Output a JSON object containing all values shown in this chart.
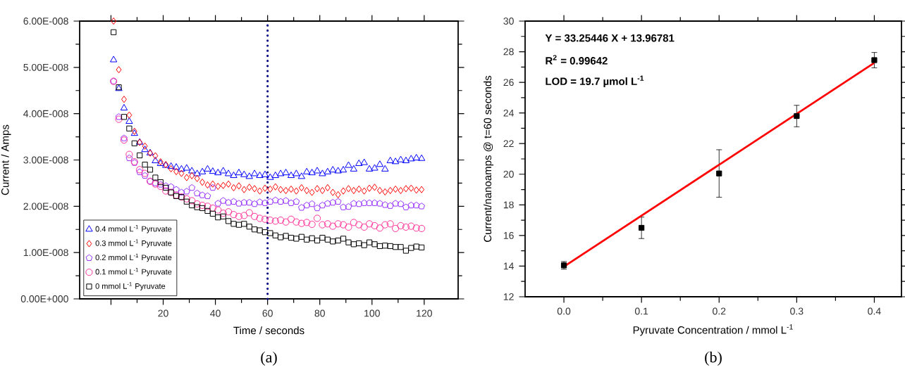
{
  "chart_data": [
    {
      "type": "scatter",
      "xlabel": "Time / seconds",
      "ylabel": "Current / Amps",
      "xlim": [
        -12,
        133
      ],
      "ylim": [
        0,
        6e-08
      ],
      "xticks": [
        {
          "value": 0,
          "label": null
        },
        20,
        40,
        60,
        80,
        100,
        120
      ],
      "yticks": [
        {
          "value": 0,
          "label": "0.00E+000"
        },
        {
          "value": 1e-08,
          "label": "1.00E-008"
        },
        {
          "value": 2e-08,
          "label": "2.00E-008"
        },
        {
          "value": 3e-08,
          "label": "3.00E-008"
        },
        {
          "value": 4e-08,
          "label": "4.00E-008"
        },
        {
          "value": 5e-08,
          "label": "5.00E-008"
        },
        {
          "value": 6e-08,
          "label": "6.00E-008"
        }
      ],
      "legend": "bottom left",
      "ref_lines": [
        {
          "axis": "x",
          "value": 60,
          "color": "#000080",
          "line_style": "dotted"
        }
      ],
      "annotations": [
        "(a)"
      ],
      "x": [
        1,
        3,
        5,
        7,
        9,
        11,
        13,
        15,
        17,
        19,
        21,
        23,
        25,
        27,
        29,
        31,
        33,
        35,
        37,
        39,
        41,
        43,
        45,
        47,
        49,
        51,
        53,
        55,
        57,
        59,
        61,
        63,
        65,
        67,
        69,
        71,
        73,
        75,
        77,
        79,
        81,
        83,
        85,
        87,
        89,
        91,
        93,
        95,
        97,
        99,
        101,
        103,
        105,
        107,
        109,
        111,
        113,
        115,
        117,
        119
      ],
      "series": [
        {
          "name": "0.4 mmol L$^{-1}$ Pyruvate",
          "color": "#0000ff",
          "marker": "triangle",
          "values": [
            5.16e-08,
            4.54e-08,
            4.12e-08,
            3.83e-08,
            3.57e-08,
            3.38e-08,
            3.22e-08,
            3.15e-08,
            2.98e-08,
            2.92e-08,
            2.88e-08,
            2.86e-08,
            2.84e-08,
            2.8e-08,
            2.82e-08,
            2.76e-08,
            2.7e-08,
            2.74e-08,
            2.8e-08,
            2.75e-08,
            2.72e-08,
            2.76e-08,
            2.7e-08,
            2.66e-08,
            2.72e-08,
            2.68e-08,
            2.64e-08,
            2.7e-08,
            2.66e-08,
            2.68e-08,
            2.62e-08,
            2.66e-08,
            2.7e-08,
            2.72e-08,
            2.66e-08,
            2.7e-08,
            2.64e-08,
            2.74e-08,
            2.72e-08,
            2.76e-08,
            2.7e-08,
            2.74e-08,
            2.78e-08,
            2.76e-08,
            2.78e-08,
            2.88e-08,
            2.8e-08,
            2.92e-08,
            2.94e-08,
            2.8e-08,
            2.82e-08,
            2.9e-08,
            2.8e-08,
            2.98e-08,
            2.96e-08,
            3e-08,
            2.98e-08,
            3.02e-08,
            3.04e-08,
            3.03e-08
          ]
        },
        {
          "name": "0.3 mmol L$^{-1}$ Pyruvate",
          "color": "#ff0000",
          "marker": "diamond",
          "values": [
            6e-08,
            4.95e-08,
            4.31e-08,
            3.97e-08,
            3.62e-08,
            3.38e-08,
            3.3e-08,
            3.15e-08,
            3.09e-08,
            2.96e-08,
            2.9e-08,
            2.81e-08,
            2.75e-08,
            2.71e-08,
            2.62e-08,
            2.66e-08,
            2.6e-08,
            2.52e-08,
            2.46e-08,
            2.48e-08,
            2.43e-08,
            2.45e-08,
            2.48e-08,
            2.4e-08,
            2.44e-08,
            2.36e-08,
            2.41e-08,
            2.38e-08,
            2.33e-08,
            2.39e-08,
            2.37e-08,
            2.42e-08,
            2.36e-08,
            2.34e-08,
            2.37e-08,
            2.33e-08,
            2.4e-08,
            2.34e-08,
            2.3e-08,
            2.38e-08,
            2.34e-08,
            2.4e-08,
            2.3e-08,
            2.25e-08,
            2.33e-08,
            2.38e-08,
            2.34e-08,
            2.37e-08,
            2.33e-08,
            2.39e-08,
            2.41e-08,
            2.34e-08,
            2.31e-08,
            2.34e-08,
            2.37e-08,
            2.34e-08,
            2.38e-08,
            2.39e-08,
            2.35e-08,
            2.36e-08
          ]
        },
        {
          "name": "0.2 mmol L$^{-1}$ Pyruvate",
          "color": "#9933ff",
          "values": [
            4.7e-08,
            3.93e-08,
            3.47e-08,
            3.04e-08,
            2.94e-08,
            2.74e-08,
            2.66e-08,
            2.54e-08,
            2.5e-08,
            2.47e-08,
            2.44e-08,
            2.42e-08,
            2.36e-08,
            2.3e-08,
            2.32e-08,
            2.4e-08,
            2.28e-08,
            2.24e-08,
            2.22e-08,
            2.4e-08,
            2.06e-08,
            2.12e-08,
            2.08e-08,
            2.1e-08,
            2.06e-08,
            2.08e-08,
            2.08e-08,
            2.05e-08,
            2.09e-08,
            2.07e-08,
            2.1e-08,
            2.13e-08,
            2.1e-08,
            2.12e-08,
            2.07e-08,
            2.1e-08,
            1.97e-08,
            2.02e-08,
            2.05e-08,
            1.96e-08,
            2.02e-08,
            2.06e-08,
            2.08e-08,
            2.1e-08,
            1.98e-08,
            1.99e-08,
            2.06e-08,
            2.05e-08,
            2.07e-08,
            2.07e-08,
            2.07e-08,
            2.06e-08,
            2.03e-08,
            2.01e-08,
            2.06e-08,
            2.05e-08,
            1.98e-08,
            2.02e-08,
            2.02e-08,
            2e-08
          ]
        },
        {
          "name": "0.1 mmol L$^{-1}$ Pyruvate",
          "color": "#ff3399",
          "marker": "circle",
          "values": [
            4.7e-08,
            3.88e-08,
            3.43e-08,
            3.12e-08,
            2.96e-08,
            2.79e-08,
            2.71e-08,
            2.54e-08,
            2.48e-08,
            2.43e-08,
            2.33e-08,
            2.3e-08,
            2.24e-08,
            2.2e-08,
            2.16e-08,
            2.12e-08,
            2.05e-08,
            2.02e-08,
            2e-08,
            1.96e-08,
            1.92e-08,
            1.85e-08,
            1.88e-08,
            1.82e-08,
            1.78e-08,
            1.8e-08,
            1.86e-08,
            1.78e-08,
            1.74e-08,
            1.72e-08,
            1.7e-08,
            1.68e-08,
            1.7e-08,
            1.66e-08,
            1.72e-08,
            1.66e-08,
            1.63e-08,
            1.65e-08,
            1.61e-08,
            1.74e-08,
            1.6e-08,
            1.62e-08,
            1.57e-08,
            1.62e-08,
            1.6e-08,
            1.55e-08,
            1.65e-08,
            1.6e-08,
            1.55e-08,
            1.62e-08,
            1.58e-08,
            1.53e-08,
            1.6e-08,
            1.62e-08,
            1.52e-08,
            1.58e-08,
            1.55e-08,
            1.57e-08,
            1.53e-08,
            1.52e-08
          ]
        },
        {
          "name": "0 mmol L$^{-1}$ Pyruvate",
          "color": "#000000",
          "marker": "square",
          "values": [
            5.76e-08,
            4.57e-08,
            3.93e-08,
            3.68e-08,
            3.36e-08,
            3.1e-08,
            2.9e-08,
            2.79e-08,
            2.62e-08,
            2.52e-08,
            2.4e-08,
            2.3e-08,
            2.22e-08,
            2.2e-08,
            2.1e-08,
            2.02e-08,
            1.98e-08,
            1.96e-08,
            1.9e-08,
            1.84e-08,
            1.76e-08,
            1.78e-08,
            1.68e-08,
            1.62e-08,
            1.6e-08,
            1.62e-08,
            1.56e-08,
            1.5e-08,
            1.48e-08,
            1.44e-08,
            1.42e-08,
            1.37e-08,
            1.33e-08,
            1.36e-08,
            1.32e-08,
            1.3e-08,
            1.34e-08,
            1.28e-08,
            1.31e-08,
            1.26e-08,
            1.32e-08,
            1.28e-08,
            1.24e-08,
            1.26e-08,
            1.3e-08,
            1.22e-08,
            1.18e-08,
            1.2e-08,
            1.16e-08,
            1.22e-08,
            1.18e-08,
            1.14e-08,
            1.15e-08,
            1.14e-08,
            1.12e-08,
            1.12e-08,
            1.04e-08,
            1.1e-08,
            1.13e-08,
            1.11e-08
          ]
        }
      ]
    },
    {
      "type": "scatter",
      "xlabel": "Pyruvate Concentration / mmol L$^{-1}$",
      "ylabel": "Current/nanoamps @ t=60 seconds",
      "xlim": [
        -0.05,
        0.435
      ],
      "ylim": [
        12,
        30
      ],
      "xticks": [
        {
          "value": 0,
          "label": "0.0"
        },
        0.1,
        0.2,
        0.3,
        0.4
      ],
      "yticks": [
        12,
        14,
        16,
        18,
        20,
        22,
        24,
        26,
        28,
        30
      ],
      "annotations": [
        "Y = 33.25446 X + 13.96781",
        "R$^{2}$ = 0.99642",
        "LOD = 19.7 µmol L$^{-1}$",
        "(b)"
      ],
      "x": [
        0,
        0.1,
        0.2,
        0.3,
        0.4
      ],
      "series": [
        {
          "color": "#000000",
          "marker": "square",
          "values": [
            14.05,
            16.5,
            20.05,
            23.8,
            27.45
          ],
          "errors": [
            0.25,
            0.7,
            1.55,
            0.7,
            0.5
          ]
        },
        {
          "type": "line",
          "color": "#ff0000",
          "marker": "none",
          "line_style": "solid",
          "x": [
            0,
            0.4
          ],
          "values": [
            13.97,
            27.27
          ]
        }
      ]
    }
  ]
}
